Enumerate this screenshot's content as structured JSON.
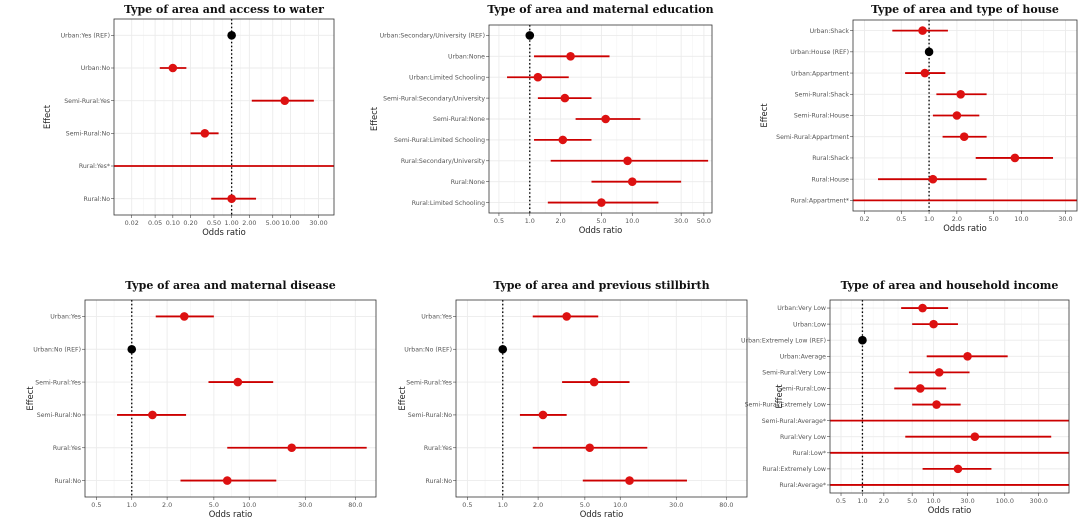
{
  "colors": {
    "ci": "#cc0000",
    "point": "#dd1111",
    "ref": "#000000",
    "grid": "#ebebeb",
    "border": "#333333",
    "refline": "#000000"
  },
  "chart_data": [
    {
      "type": "forest",
      "title": "Type of area and access to water",
      "xlabel": "Odds ratio",
      "ylabel": "Effect",
      "xscale": "log",
      "xlim": [
        0.01,
        55
      ],
      "xticks": [
        0.02,
        0.05,
        0.1,
        0.2,
        0.5,
        1,
        2,
        5,
        10,
        30
      ],
      "xtick_labels": [
        "0.02",
        "0.05",
        "0.10",
        "0.20",
        "0.50",
        "1.00",
        "2.00",
        "5.00",
        "10.00",
        "30.00"
      ],
      "reference_line": 1,
      "rows": [
        {
          "label": "Urban:Yes (REF)",
          "or": 1,
          "lo": 1,
          "hi": 1,
          "ref": true
        },
        {
          "label": "Urban:No",
          "or": 0.1,
          "lo": 0.06,
          "hi": 0.17
        },
        {
          "label": "Semi-Rural:Yes",
          "or": 8,
          "lo": 2.2,
          "hi": 25
        },
        {
          "label": "Semi-Rural:No",
          "or": 0.35,
          "lo": 0.2,
          "hi": 0.6
        },
        {
          "label": "Rural:Yes*",
          "or": null,
          "lo": 0.01,
          "hi": 55,
          "open": true
        },
        {
          "label": "Rural:No",
          "or": 1,
          "lo": 0.45,
          "hi": 2.6
        }
      ]
    },
    {
      "type": "forest",
      "title": "Type of area and maternal education",
      "xlabel": "Odds ratio",
      "ylabel": "Effect",
      "xscale": "log",
      "xlim": [
        0.4,
        60
      ],
      "xticks": [
        0.5,
        1,
        2,
        5,
        10,
        30,
        50
      ],
      "xtick_labels": [
        "0.5",
        "1.0",
        "2.0",
        "5.0",
        "10.0",
        "30.0",
        "50.0"
      ],
      "reference_line": 1,
      "rows": [
        {
          "label": "Urban:Secondary/University (REF)",
          "or": 1,
          "lo": 1,
          "hi": 1,
          "ref": true
        },
        {
          "label": "Urban:None",
          "or": 2.5,
          "lo": 1.1,
          "hi": 6
        },
        {
          "label": "Urban:Limited Schooling",
          "or": 1.2,
          "lo": 0.6,
          "hi": 2.4
        },
        {
          "label": "Semi-Rural:Secondary/University",
          "or": 2.2,
          "lo": 1.2,
          "hi": 4
        },
        {
          "label": "Semi-Rural:None",
          "or": 5.5,
          "lo": 2.8,
          "hi": 12
        },
        {
          "label": "Semi-Rural:Limited Schooling",
          "or": 2.1,
          "lo": 1.1,
          "hi": 4
        },
        {
          "label": "Rural:Secondary/University",
          "or": 9,
          "lo": 1.6,
          "hi": 55
        },
        {
          "label": "Rural:None",
          "or": 10,
          "lo": 4,
          "hi": 30
        },
        {
          "label": "Rural:Limited Schooling",
          "or": 5,
          "lo": 1.5,
          "hi": 18
        }
      ]
    },
    {
      "type": "forest",
      "title": "Type of area and type of house",
      "xlabel": "Odds ratio",
      "ylabel": "Effect",
      "xscale": "log",
      "xlim": [
        0.15,
        40
      ],
      "xticks": [
        0.2,
        0.5,
        1,
        2,
        5,
        10,
        30
      ],
      "xtick_labels": [
        "0.2",
        "0.5",
        "1.0",
        "2.0",
        "5.0",
        "10.0",
        "30.0"
      ],
      "reference_line": 1,
      "rows": [
        {
          "label": "Urban:Shack",
          "or": 0.85,
          "lo": 0.4,
          "hi": 1.6
        },
        {
          "label": "Urban:House (REF)",
          "or": 1,
          "lo": 1,
          "hi": 1,
          "ref": true
        },
        {
          "label": "Urban:Appartment",
          "or": 0.9,
          "lo": 0.55,
          "hi": 1.5
        },
        {
          "label": "Semi-Rural:Shack",
          "or": 2.2,
          "lo": 1.2,
          "hi": 4.2
        },
        {
          "label": "Semi-Rural:House",
          "or": 2,
          "lo": 1.1,
          "hi": 3.5
        },
        {
          "label": "Semi-Rural:Appartment",
          "or": 2.4,
          "lo": 1.4,
          "hi": 4.2
        },
        {
          "label": "Rural:Shack",
          "or": 8.5,
          "lo": 3.2,
          "hi": 22
        },
        {
          "label": "Rural:House",
          "or": 1.1,
          "lo": 0.28,
          "hi": 4.2
        },
        {
          "label": "Rural:Appartment*",
          "or": null,
          "lo": 0.15,
          "hi": 40,
          "open": true
        }
      ]
    },
    {
      "type": "forest",
      "title": "Type of area and maternal disease",
      "xlabel": "Odds ratio",
      "ylabel": "Effect",
      "xscale": "log",
      "xlim": [
        0.4,
        120
      ],
      "xticks": [
        0.5,
        1,
        2,
        5,
        10,
        30,
        80
      ],
      "xtick_labels": [
        "0.5",
        "1.0",
        "2.0",
        "5.0",
        "10.0",
        "30.0",
        "80.0"
      ],
      "reference_line": 1,
      "rows": [
        {
          "label": "Urban:Yes",
          "or": 2.8,
          "lo": 1.6,
          "hi": 5
        },
        {
          "label": "Urban:No (REF)",
          "or": 1,
          "lo": 1,
          "hi": 1,
          "ref": true
        },
        {
          "label": "Semi-Rural:Yes",
          "or": 8,
          "lo": 4.5,
          "hi": 16
        },
        {
          "label": "Semi-Rural:No",
          "or": 1.5,
          "lo": 0.75,
          "hi": 2.9
        },
        {
          "label": "Rural:Yes",
          "or": 23,
          "lo": 6.5,
          "hi": 100
        },
        {
          "label": "Rural:No",
          "or": 6.5,
          "lo": 2.6,
          "hi": 17
        }
      ]
    },
    {
      "type": "forest",
      "title": "Type of area and previous stillbirth",
      "xlabel": "Odds ratio",
      "ylabel": "Effect",
      "xscale": "log",
      "xlim": [
        0.4,
        120
      ],
      "xticks": [
        0.5,
        1,
        2,
        5,
        10,
        30,
        80
      ],
      "xtick_labels": [
        "0.5",
        "1.0",
        "2.0",
        "5.0",
        "10.0",
        "30.0",
        "80.0"
      ],
      "reference_line": 1,
      "rows": [
        {
          "label": "Urban:Yes",
          "or": 3.5,
          "lo": 1.8,
          "hi": 6.5
        },
        {
          "label": "Urban:No (REF)",
          "or": 1,
          "lo": 1,
          "hi": 1,
          "ref": true
        },
        {
          "label": "Semi-Rural:Yes",
          "or": 6,
          "lo": 3.2,
          "hi": 12
        },
        {
          "label": "Semi-Rural:No",
          "or": 2.2,
          "lo": 1.4,
          "hi": 3.5
        },
        {
          "label": "Rural:Yes",
          "or": 5.5,
          "lo": 1.8,
          "hi": 17
        },
        {
          "label": "Rural:No",
          "or": 12,
          "lo": 4.8,
          "hi": 37
        }
      ]
    },
    {
      "type": "forest",
      "title": "Type of area and household income",
      "xlabel": "Odds ratio",
      "ylabel": "Effect",
      "xscale": "log",
      "xlim": [
        0.35,
        800
      ],
      "xticks": [
        0.5,
        1,
        2,
        5,
        10,
        30,
        100,
        300
      ],
      "xtick_labels": [
        "0.5",
        "1.0",
        "2.0",
        "5.0",
        "10.0",
        "30.0",
        "100.0",
        "300.0"
      ],
      "reference_line": 1,
      "rows": [
        {
          "label": "Urban:Very Low",
          "or": 7,
          "lo": 3.5,
          "hi": 16
        },
        {
          "label": "Urban:Low",
          "or": 10,
          "lo": 5,
          "hi": 22
        },
        {
          "label": "Urban:Extremely Low (REF)",
          "or": 1,
          "lo": 1,
          "hi": 1,
          "ref": true
        },
        {
          "label": "Urban:Average",
          "or": 30,
          "lo": 8,
          "hi": 110
        },
        {
          "label": "Semi-Rural:Very Low",
          "or": 12,
          "lo": 4.5,
          "hi": 32
        },
        {
          "label": "Semi-Rural:Low",
          "or": 6.5,
          "lo": 2.8,
          "hi": 15
        },
        {
          "label": "Semi-Rural:Extremely Low",
          "or": 11,
          "lo": 5,
          "hi": 24
        },
        {
          "label": "Semi-Rural:Average*",
          "or": null,
          "lo": 0.35,
          "hi": 800,
          "open": true
        },
        {
          "label": "Rural:Very Low",
          "or": 38,
          "lo": 4,
          "hi": 450
        },
        {
          "label": "Rural:Low*",
          "or": null,
          "lo": 0.35,
          "hi": 800,
          "open": true
        },
        {
          "label": "Rural:Extremely Low",
          "or": 22,
          "lo": 7,
          "hi": 65
        },
        {
          "label": "Rural:Average*",
          "or": null,
          "lo": 0.35,
          "hi": 800,
          "open": true
        }
      ]
    }
  ]
}
